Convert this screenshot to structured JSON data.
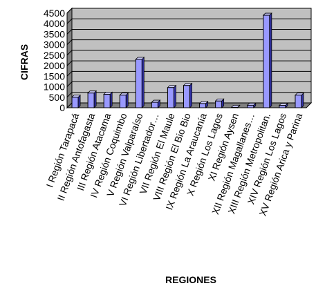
{
  "chart_data": {
    "type": "bar",
    "title": "",
    "xlabel": "REGIONES",
    "ylabel": "CIFRAS",
    "ylim": [
      0,
      4500
    ],
    "yticks": [
      0,
      500,
      1000,
      1500,
      2000,
      2500,
      3000,
      3500,
      4000,
      4500
    ],
    "grid": true,
    "legend": "none",
    "style": "3d",
    "colors": {
      "bar_front": "#9999ff",
      "bar_side": "#3333aa",
      "bar_top": "#ccccff",
      "plot_bg": "#c0c0c0",
      "floor": "#808080"
    },
    "categories": [
      "I Región Tarapacá",
      "II Región Antofagasta",
      "III Región Atacama",
      "IV Región Coquimbo",
      "V Región Valparaíso",
      "VI Región Libertador…",
      "VII Región El Maule",
      "VIII Región El Bio Bio",
      "IX Región La Araucanía",
      "X Región Los Lagos",
      "XI Región Aysen",
      "XII Región Magallanes…",
      "XIII Región Metropolitan.",
      "XIV Región Los Lagos",
      "XV Región Arica y Parina"
    ],
    "values": [
      500,
      700,
      640,
      600,
      2300,
      260,
      960,
      1060,
      200,
      320,
      20,
      120,
      4400,
      110,
      600
    ]
  }
}
